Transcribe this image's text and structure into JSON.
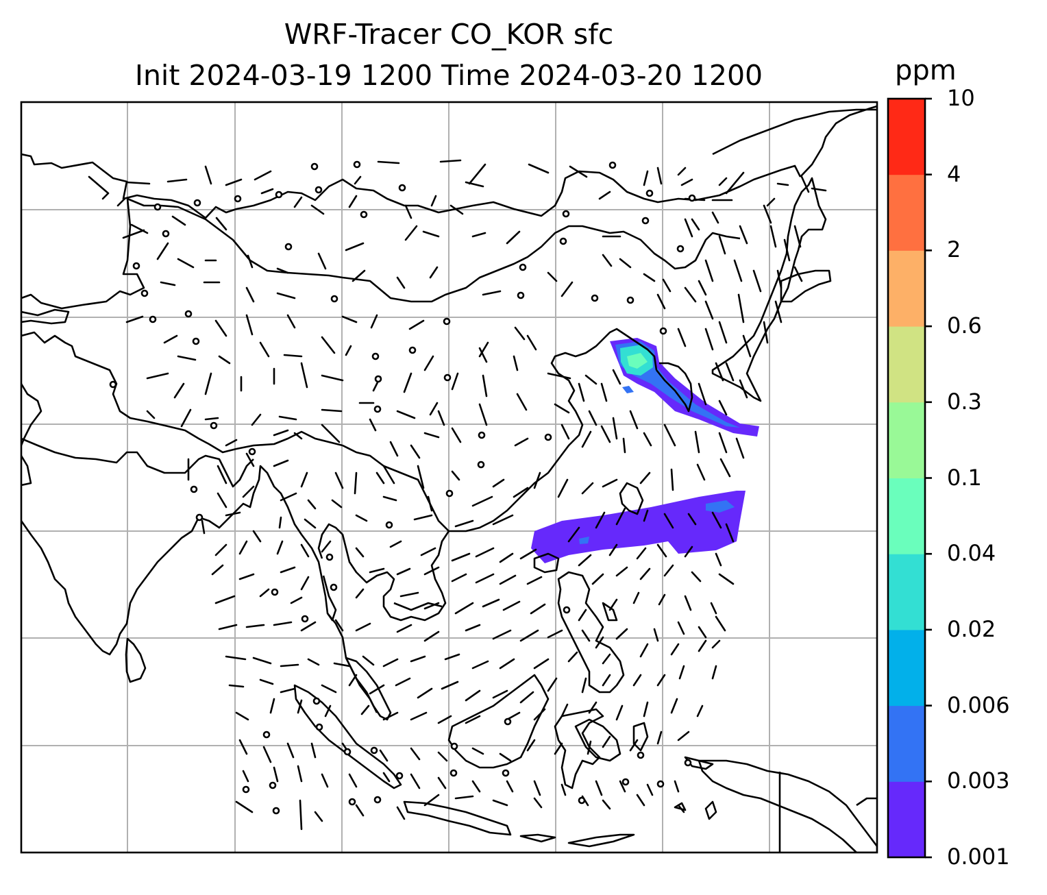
{
  "title": {
    "line1": "WRF-Tracer CO_KOR sfc",
    "line2": "Init 2024-03-19 1200 Time 2024-03-20 1200"
  },
  "colorbar": {
    "unit": "ppm",
    "levels": [
      "0.001",
      "0.003",
      "0.006",
      "0.02",
      "0.04",
      "0.1",
      "0.3",
      "0.6",
      "2",
      "4",
      "10"
    ],
    "colors": [
      "#6629fb",
      "#3373f4",
      "#02b0ea",
      "#33dfd3",
      "#6afebc",
      "#99f997",
      "#d0e383",
      "#fdb067",
      "#ff7040",
      "#ff2916"
    ]
  },
  "map": {
    "tracer_plumes": [
      "Yellow Sea / Korean Peninsula plume",
      "East China Sea / Taiwan plume"
    ],
    "grid_lines": true
  }
}
